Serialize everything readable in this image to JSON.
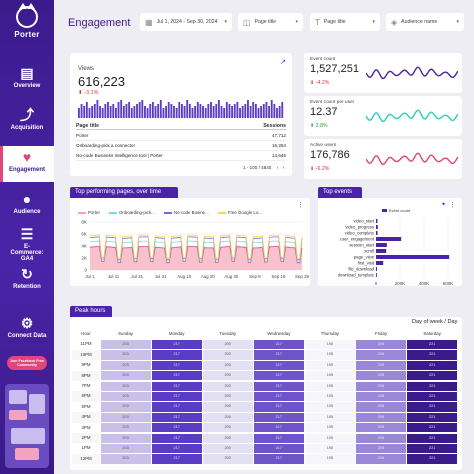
{
  "app": {
    "logo_text": "Porter"
  },
  "sidebar": {
    "items": [
      {
        "label": "Overview",
        "icon": "overview-icon"
      },
      {
        "label": "Acquisition",
        "icon": "acquisition-icon"
      },
      {
        "label": "Engagement",
        "icon": "heart-icon"
      },
      {
        "label": "Audience",
        "icon": "audience-icon"
      },
      {
        "label": "E-Commerce: GA4",
        "icon": "ecommerce-icon"
      },
      {
        "label": "Retention",
        "icon": "retention-icon"
      },
      {
        "label": "Connect Data",
        "icon": "gear-icon"
      }
    ],
    "join_label": "Join Facebook Free Community"
  },
  "header": {
    "title": "Engagement",
    "date_range": "Jul 1, 2024 - Sep 30, 2024",
    "filter1": "Page title",
    "filter2": "Page title",
    "filter3": "Audience name"
  },
  "views": {
    "label": "Views",
    "value": "616,223",
    "delta": "-3.1%",
    "bars": [
      5,
      7,
      6,
      8,
      5,
      6,
      7,
      9,
      6,
      5,
      7,
      8,
      6,
      7,
      5,
      8,
      9,
      6,
      7,
      8,
      5,
      6,
      7,
      8,
      9,
      6,
      5,
      7,
      8,
      6,
      7,
      9,
      5,
      6,
      8,
      7,
      6,
      5,
      8,
      7,
      6,
      9,
      7,
      5,
      6,
      8,
      7,
      6,
      5,
      7,
      8,
      6,
      7,
      9,
      6,
      5,
      8,
      7,
      6,
      7,
      8,
      5,
      6,
      7,
      9,
      6,
      8,
      7,
      5,
      6,
      7,
      8,
      6,
      9,
      7,
      5,
      6,
      8
    ],
    "table": {
      "col1": "Page title",
      "col2": "Sessions",
      "rows": [
        {
          "title": "Porter",
          "sessions": "47,712"
        },
        {
          "title": "Onboarding-pick a connector",
          "sessions": "16,254"
        },
        {
          "title": "No-code Business Intelligence tool | Porter",
          "sessions": "14,645"
        }
      ],
      "pager": "1 - 100 / 4840"
    }
  },
  "metrics": [
    {
      "label": "Event count",
      "value": "1,527,251",
      "delta": "-4.2%",
      "direction": "down",
      "color": "#4a24a8"
    },
    {
      "label": "Event count per user",
      "value": "12.37",
      "delta": "2.8%",
      "direction": "up",
      "color": "#2ad1b8"
    },
    {
      "label": "Active users",
      "value": "176,786",
      "delta": "-6.2%",
      "direction": "down",
      "color": "#e0457b"
    }
  ],
  "top_pages": {
    "tab": "Top performing pages, over time",
    "legend": [
      {
        "name": "Porter",
        "color": "#f7a1b5"
      },
      {
        "name": "Onboarding-pick...",
        "color": "#7fd6e6"
      },
      {
        "name": "No-code Busine...",
        "color": "#6b6fd8"
      },
      {
        "name": "Free Google Lo...",
        "color": "#f5d94a"
      }
    ],
    "yticks": [
      "8K",
      "6K",
      "4K",
      "2K",
      "0"
    ],
    "xticks": [
      "Jul 1",
      "Jul 11",
      "Jul 21",
      "Jul 31",
      "Aug 10",
      "Aug 20",
      "Aug 30",
      "Sep 9",
      "Sep 19",
      "Sep 29"
    ]
  },
  "chart_data": {
    "type": "bar",
    "title": "Top events",
    "legend": "Event count",
    "categories": [
      "video_start",
      "video_progress",
      "video_complete",
      "user_engagement",
      "session_start",
      "scroll",
      "page_view",
      "first_visit",
      "file_download",
      "download_template"
    ],
    "values": [
      12000,
      15000,
      13000,
      210000,
      90000,
      85000,
      610000,
      60000,
      8000,
      7000
    ],
    "xticks": [
      "0",
      "200K",
      "400K",
      "600K"
    ],
    "xlim": [
      0,
      650000
    ]
  },
  "peak_hours": {
    "tab": "Peak hours",
    "title": "Day of week / Day",
    "hour_header": "Hour",
    "days": [
      "Sunday",
      "Monday",
      "Tuesday",
      "Wednesday",
      "Thursday",
      "Friday",
      "Saturday"
    ],
    "values": [
      "203",
      "217",
      "200",
      "217",
      "195",
      "208",
      "221"
    ],
    "hours": [
      "11PM",
      "10PM",
      "9PM",
      "8PM",
      "7PM",
      "6PM",
      "5PM",
      "4PM",
      "3PM",
      "2PM",
      "1PM",
      "12PM"
    ],
    "colors": [
      "#c8c0e8",
      "#5b3cc4",
      "#e4e0f3",
      "#6f53c8",
      "#f6f5fb",
      "#9a87d8",
      "#3b1b8c"
    ]
  }
}
